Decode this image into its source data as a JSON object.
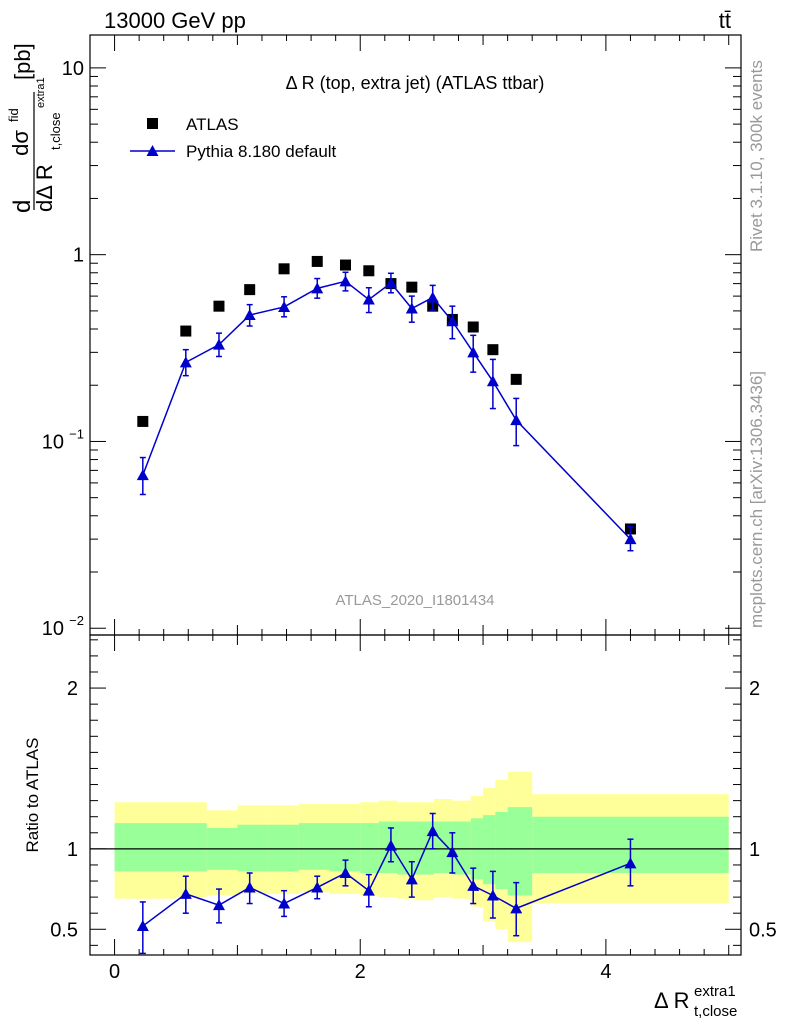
{
  "header": {
    "energy_label": "13000 GeV pp",
    "process_label": "tt̄"
  },
  "side": {
    "rivet_label": "Rivet 3.1.10,  300k events",
    "mcplots_label": "mcplots.cern.ch [arXiv:1306.3436]"
  },
  "colors": {
    "mc": "#0000cc",
    "band_inner": "#99ff99",
    "band_outer": "#ffff99",
    "data": "#000000"
  },
  "chart_data": [
    {
      "type": "scatter",
      "title": "Δ R (top, extra jet) (ATLAS ttbar)",
      "analysis_label": "ATLAS_2020_I1801434",
      "ylabel": {
        "prefix": "d",
        "numerator": "dσ",
        "numerator_sup": "fid",
        "denominator": "dΔ R",
        "denominator_sub": "t,close",
        "denominator_sup": "extra1",
        "unit": "[pb]"
      },
      "yscale": "log",
      "xlim": [
        -0.2,
        5.1
      ],
      "ylim": [
        0.0092,
        15
      ],
      "y_ticks": [
        {
          "v": 10,
          "label": "10"
        },
        {
          "v": 1,
          "label": "1"
        },
        {
          "v": 0.1,
          "label": "10",
          "sup": "−1"
        },
        {
          "v": 0.01,
          "label": "10",
          "sup": "−2"
        }
      ],
      "legend": {
        "position": "top-left",
        "entries": [
          "ATLAS",
          "Pythia 8.180 default"
        ]
      },
      "series": [
        {
          "name": "ATLAS",
          "marker": "square",
          "x": [
            0.23,
            0.58,
            0.85,
            1.1,
            1.38,
            1.65,
            1.88,
            2.07,
            2.25,
            2.42,
            2.59,
            2.75,
            2.92,
            3.08,
            3.27,
            4.2
          ],
          "y": [
            0.128,
            0.39,
            0.53,
            0.65,
            0.84,
            0.92,
            0.88,
            0.82,
            0.7,
            0.67,
            0.53,
            0.45,
            0.41,
            0.31,
            0.215,
            0.034
          ]
        },
        {
          "name": "Pythia 8.180 default",
          "marker": "triangle",
          "x": [
            0.23,
            0.58,
            0.85,
            1.1,
            1.38,
            1.65,
            1.88,
            2.07,
            2.25,
            2.42,
            2.59,
            2.75,
            2.92,
            3.08,
            3.27,
            4.2
          ],
          "y": [
            0.066,
            0.265,
            0.33,
            0.475,
            0.525,
            0.66,
            0.72,
            0.575,
            0.705,
            0.515,
            0.59,
            0.44,
            0.3,
            0.21,
            0.13,
            0.03
          ],
          "yerr_lo": [
            0.014,
            0.04,
            0.045,
            0.06,
            0.06,
            0.075,
            0.08,
            0.085,
            0.08,
            0.08,
            0.085,
            0.085,
            0.065,
            0.06,
            0.035,
            0.004
          ],
          "yerr_hi": [
            0.016,
            0.045,
            0.05,
            0.065,
            0.07,
            0.085,
            0.085,
            0.09,
            0.09,
            0.085,
            0.095,
            0.09,
            0.07,
            0.065,
            0.04,
            0.005
          ]
        }
      ]
    },
    {
      "type": "line",
      "ylabel": "Ratio to ATLAS",
      "xlabel": {
        "base": "Δ R",
        "sub": "t,close",
        "sup": "extra1"
      },
      "xlim": [
        -0.2,
        5.1
      ],
      "ylim": [
        0.34,
        2.33
      ],
      "x_ticks": [
        0,
        2,
        4
      ],
      "y_ticks": [
        0.5,
        1,
        2
      ],
      "reference_line": 1,
      "bands": {
        "edges": [
          0.0,
          0.5,
          0.75,
          1.0,
          1.25,
          1.5,
          1.75,
          2.0,
          2.15,
          2.3,
          2.45,
          2.6,
          2.75,
          2.9,
          3.0,
          3.1,
          3.2,
          3.4,
          5.0
        ],
        "outer_lo": [
          0.69,
          0.7,
          0.71,
          0.72,
          0.72,
          0.73,
          0.72,
          0.71,
          0.7,
          0.69,
          0.68,
          0.7,
          0.69,
          0.64,
          0.55,
          0.5,
          0.42,
          0.66
        ],
        "outer_hi": [
          1.29,
          1.29,
          1.24,
          1.27,
          1.27,
          1.28,
          1.28,
          1.29,
          1.3,
          1.29,
          1.29,
          1.31,
          1.3,
          1.33,
          1.38,
          1.43,
          1.48,
          1.34
        ],
        "inner_lo": [
          0.86,
          0.86,
          0.87,
          0.86,
          0.86,
          0.87,
          0.86,
          0.85,
          0.85,
          0.84,
          0.84,
          0.85,
          0.84,
          0.81,
          0.78,
          0.75,
          0.71,
          0.85
        ],
        "inner_hi": [
          1.16,
          1.16,
          1.13,
          1.15,
          1.15,
          1.16,
          1.16,
          1.16,
          1.17,
          1.17,
          1.17,
          1.17,
          1.17,
          1.19,
          1.21,
          1.23,
          1.26,
          1.2
        ]
      },
      "series": [
        {
          "name": "Pythia 8.180 default",
          "x": [
            0.23,
            0.58,
            0.85,
            1.1,
            1.38,
            1.65,
            1.88,
            2.07,
            2.25,
            2.42,
            2.59,
            2.75,
            2.92,
            3.08,
            3.27,
            4.2
          ],
          "y": [
            0.52,
            0.72,
            0.65,
            0.76,
            0.66,
            0.76,
            0.85,
            0.74,
            1.02,
            0.81,
            1.11,
            0.98,
            0.77,
            0.71,
            0.63,
            0.91
          ],
          "yerr_lo": [
            0.17,
            0.12,
            0.11,
            0.1,
            0.08,
            0.07,
            0.08,
            0.1,
            0.1,
            0.11,
            0.11,
            0.13,
            0.11,
            0.14,
            0.17,
            0.14
          ],
          "yerr_hi": [
            0.15,
            0.11,
            0.1,
            0.09,
            0.08,
            0.07,
            0.08,
            0.1,
            0.11,
            0.11,
            0.11,
            0.12,
            0.11,
            0.15,
            0.16,
            0.15
          ]
        }
      ]
    }
  ]
}
